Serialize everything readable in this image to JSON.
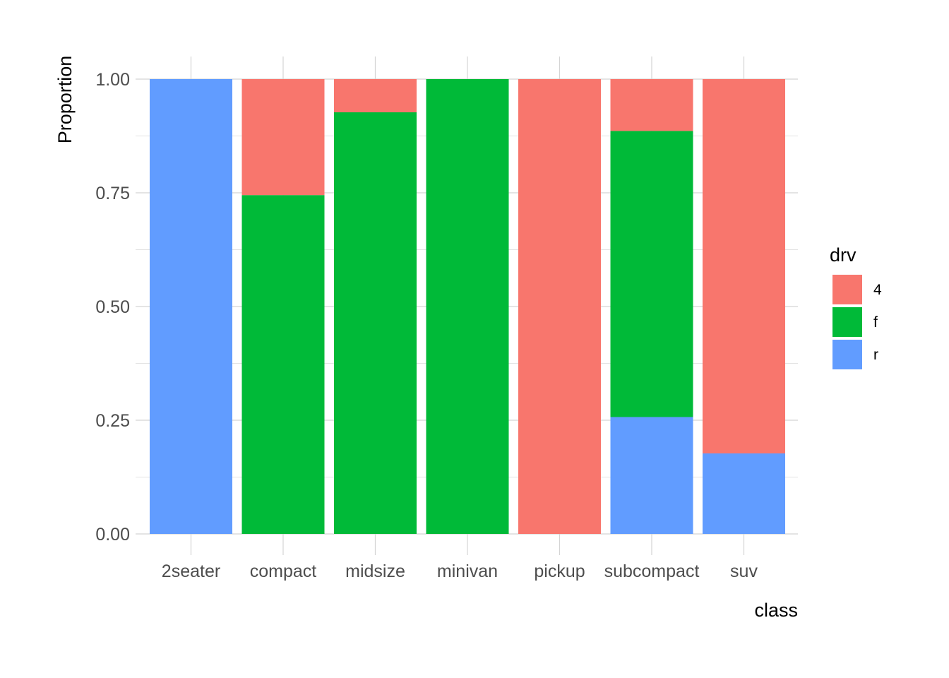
{
  "chart_data": {
    "type": "bar",
    "stacked": true,
    "position": "fill",
    "categories": [
      "2seater",
      "compact",
      "midsize",
      "minivan",
      "pickup",
      "subcompact",
      "suv"
    ],
    "series": [
      {
        "name": "4",
        "color": "#F8766D",
        "values": [
          0.0,
          0.255,
          0.073,
          0.0,
          1.0,
          0.114,
          0.823
        ]
      },
      {
        "name": "f",
        "color": "#00BA38",
        "values": [
          0.0,
          0.745,
          0.927,
          1.0,
          0.0,
          0.629,
          0.0
        ]
      },
      {
        "name": "r",
        "color": "#619CFF",
        "values": [
          1.0,
          0.0,
          0.0,
          0.0,
          0.0,
          0.257,
          0.177
        ]
      }
    ],
    "stack_order_bottom_to_top": [
      "r",
      "f",
      "4"
    ],
    "xlabel": "class",
    "ylabel": "Proportion",
    "ylim": [
      0,
      1
    ],
    "yticks": [
      "0.00",
      "0.25",
      "0.50",
      "0.75",
      "1.00"
    ],
    "ytick_values": [
      0,
      0.25,
      0.5,
      0.75,
      1.0
    ],
    "grid": true,
    "legend": {
      "title": "drv",
      "placement": "right",
      "entries": [
        "4",
        "f",
        "r"
      ]
    }
  }
}
